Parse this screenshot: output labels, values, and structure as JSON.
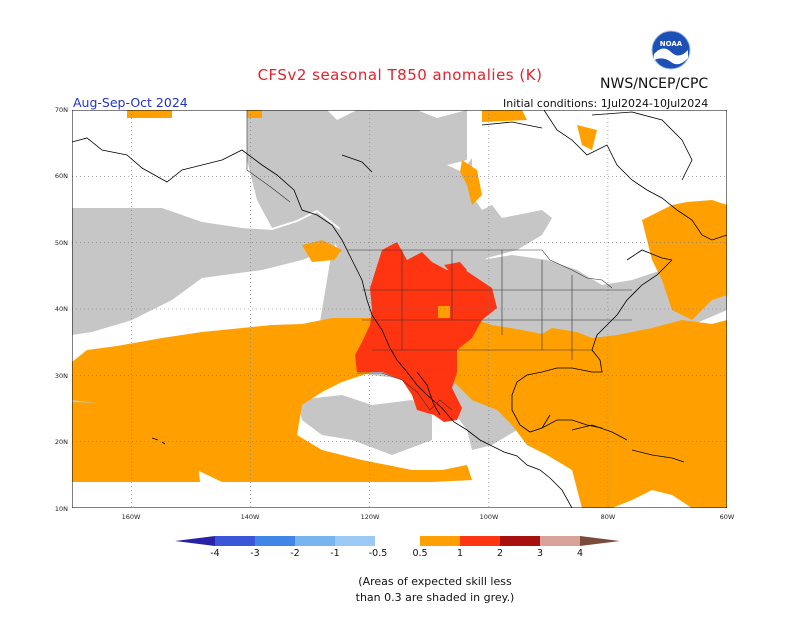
{
  "header": {
    "title": "CFSv2 seasonal T850 anomalies (K)",
    "agency": "NWS/NCEP/CPC",
    "season": "Aug-Sep-Oct 2024",
    "initial_conditions": "Initial conditions: 1Jul2024-10Jul2024"
  },
  "logo": {
    "icon": "noaa-logo",
    "text": "NOAA"
  },
  "map": {
    "lat_labels": [
      "70N",
      "60N",
      "50N",
      "40N",
      "30N",
      "20N",
      "10N"
    ],
    "lon_labels": [
      "160W",
      "140W",
      "120W",
      "100W",
      "80W",
      "60W"
    ],
    "lat_range": [
      10,
      70
    ],
    "lon_range": [
      -170,
      -60
    ],
    "colors": {
      "grey": "#c6c6c6",
      "orange": "#ffa000",
      "red": "#ff3512",
      "coast": "#000000",
      "grid": "#777777"
    }
  },
  "colorbar": {
    "labels": [
      "-4",
      "-3",
      "-2",
      "-1",
      "-0.5",
      "0.5",
      "1",
      "2",
      "3",
      "4"
    ],
    "colors": [
      "#2a22a6",
      "#3b56d6",
      "#3f86e6",
      "#78b4f0",
      "#ffffff",
      "#ffa000",
      "#ff3512",
      "#a80f0f",
      "#d9a298",
      "#7a4a3a"
    ]
  },
  "note": {
    "line1": "(Areas of expected skill less",
    "line2": "than 0.3 are shaded in grey.)"
  }
}
